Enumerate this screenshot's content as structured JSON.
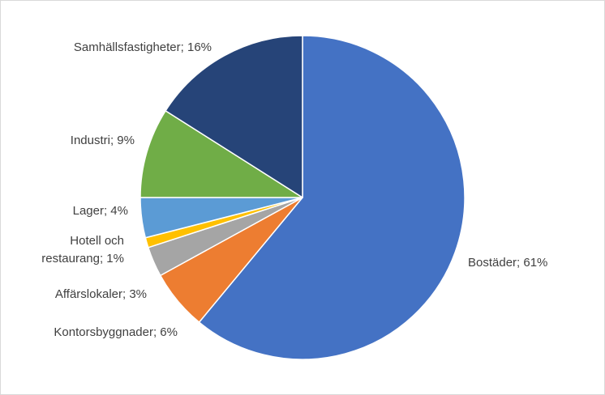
{
  "chart_data": {
    "type": "pie",
    "title": "",
    "slices": [
      {
        "label": "Bostäder",
        "value": 61,
        "color": "#4472C4",
        "label_text": [
          "Bostäder; 61%"
        ]
      },
      {
        "label": "Kontorsbyggnader",
        "value": 6,
        "color": "#ED7D31",
        "label_text": [
          "Kontorsbyggnader; 6%"
        ]
      },
      {
        "label": "Affärslokaler",
        "value": 3,
        "color": "#A5A5A5",
        "label_text": [
          "Affärslokaler; 3%"
        ]
      },
      {
        "label": "Hotell och restaurang",
        "value": 1,
        "color": "#FFC000",
        "label_text": [
          "Hotell och",
          "restaurang; 1%"
        ]
      },
      {
        "label": "Lager",
        "value": 4,
        "color": "#5B9BD5",
        "label_text": [
          "Lager; 4%"
        ]
      },
      {
        "label": "Industri",
        "value": 9,
        "color": "#70AD47",
        "label_text": [
          "Industri; 9%"
        ]
      },
      {
        "label": "Samhällsfastigheter",
        "value": 16,
        "color": "#264478",
        "label_text": [
          "Samhällsfastigheter; 16%"
        ]
      }
    ],
    "start_angle_deg": 0,
    "direction": "clockwise",
    "legend": "none",
    "label_style": "category; percent, outside"
  }
}
